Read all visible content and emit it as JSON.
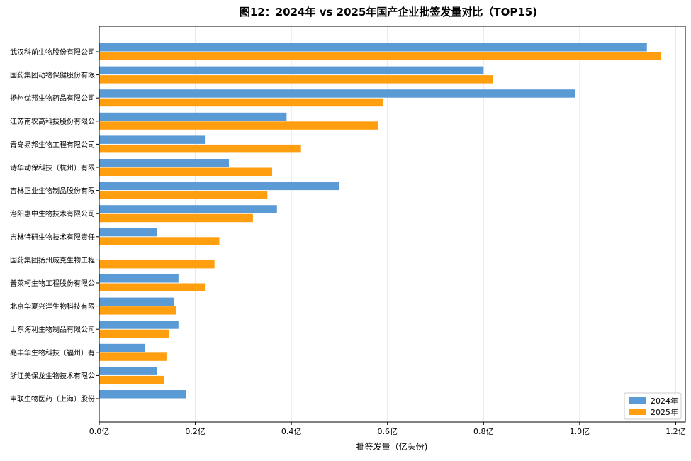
{
  "chart_data": {
    "type": "bar",
    "orientation": "horizontal",
    "title": "图12：2024年 vs 2025年国产企业批签发量对比（TOP15)",
    "xlabel": "批签发量（亿头份)",
    "ylabel": "",
    "xlim": [
      0,
      1.22
    ],
    "x_ticks": [
      0,
      0.2,
      0.4,
      0.6,
      0.8,
      1.0,
      1.2
    ],
    "x_tick_labels": [
      "0.0亿",
      "0.2亿",
      "0.4亿",
      "0.6亿",
      "0.8亿",
      "1.0亿",
      "1.2亿"
    ],
    "grid": "vertical",
    "legend_position": "bottom-right",
    "categories": [
      "武汉科前生物股份有限公司",
      "国药集团动物保健股份有限",
      "扬州优邦生物药品有限公司",
      "江苏南农高科技股份有限公",
      "青岛易邦生物工程有限公司",
      "诗华动保科技（杭州）有限",
      "吉林正业生物制品股份有限",
      "洛阳惠中生物技术有限公司",
      "吉林特研生物技术有限责任",
      "国药集团扬州威克生物工程",
      "普莱柯生物工程股份有限公",
      "北京华夏兴洋生物科技有限",
      "山东海利生物制品有限公司",
      "兆丰华生物科技（福州）有",
      "浙江美保龙生物技术有限公",
      "申联生物医药（上海）股份"
    ],
    "series": [
      {
        "name": "2024年",
        "color": "#5b9bd5",
        "values": [
          1.14,
          0.8,
          0.99,
          0.39,
          0.22,
          0.27,
          0.5,
          0.37,
          0.12,
          0,
          0.165,
          0.155,
          0.165,
          0.095,
          0.12,
          0.18
        ]
      },
      {
        "name": "2025年",
        "color": "#ff9e0f",
        "values": [
          1.17,
          0.82,
          0.59,
          0.58,
          0.42,
          0.36,
          0.35,
          0.32,
          0.25,
          0.24,
          0.22,
          0.16,
          0.145,
          0.14,
          0.135,
          0
        ]
      }
    ]
  }
}
